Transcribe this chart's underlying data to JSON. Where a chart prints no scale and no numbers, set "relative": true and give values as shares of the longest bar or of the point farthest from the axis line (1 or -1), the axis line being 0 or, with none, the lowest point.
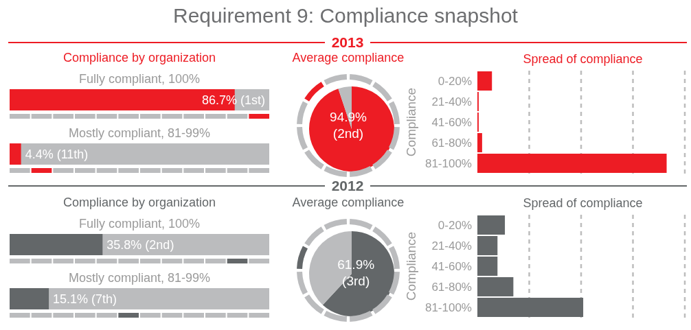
{
  "chart_data": [
    {
      "type": "bar",
      "orientation": "horizontal",
      "title": "Compliance by organization",
      "annotations": [
        "Requirement 9: Compliance snapshot",
        "2013"
      ],
      "categories": [
        "Fully compliant, 100%",
        "Mostly compliant, 81-99%"
      ],
      "values": [
        86.7,
        4.4
      ],
      "color": "#ed1c24",
      "xlim": [
        0,
        100
      ],
      "tick_labels": false,
      "value_labels": [
        "86.7% (1st)",
        "4.4% (11th)"
      ]
    },
    {
      "type": "pie",
      "title": "Average compliance",
      "categories": [
        null,
        null
      ],
      "values": [
        94.9,
        5.1
      ],
      "colors": [
        "#ed1c24",
        "#bbbcbe"
      ],
      "value_labels": [
        "94.9% (2nd)",
        null
      ]
    },
    {
      "type": "bar",
      "orientation": "horizontal",
      "title": "Spread of compliance",
      "ylabel": "Compliance",
      "categories": [
        "0-20%",
        "21-40%",
        "41-60%",
        "61-80%",
        "81-100%"
      ],
      "values": [
        0.077,
        0.007,
        0.007,
        0.025,
        1
      ],
      "color": "#ed1c24",
      "relative": true,
      "xlim": [
        0,
        1.096
      ],
      "grid": "x",
      "tick_labels": "y"
    },
    {
      "type": "bar",
      "orientation": "horizontal",
      "title": "Compliance by organization",
      "annotations": [
        "2012"
      ],
      "categories": [
        "Fully compliant, 100%",
        "Mostly compliant, 81-99%"
      ],
      "values": [
        35.8,
        15.1
      ],
      "color": "#636769",
      "xlim": [
        0,
        100
      ],
      "tick_labels": false,
      "value_labels": [
        "35.8% (2nd)",
        "15.1% (7th)"
      ]
    },
    {
      "type": "pie",
      "title": "Average compliance",
      "categories": [
        null,
        null
      ],
      "values": [
        61.9,
        38.1
      ],
      "colors": [
        "#636769",
        "#bbbcbe"
      ],
      "value_labels": [
        "61.9% (3rd)",
        null
      ]
    },
    {
      "type": "bar",
      "orientation": "horizontal",
      "title": "Spread of compliance",
      "ylabel": "Compliance",
      "categories": [
        "0-20%",
        "21-40%",
        "41-60%",
        "61-80%",
        "81-100%"
      ],
      "values": [
        0.26,
        0.19,
        0.19,
        0.34,
        1
      ],
      "color": "#636769",
      "relative": true,
      "xlim": [
        0,
        1.96
      ],
      "grid": "x",
      "tick_labels": "y"
    }
  ]
}
